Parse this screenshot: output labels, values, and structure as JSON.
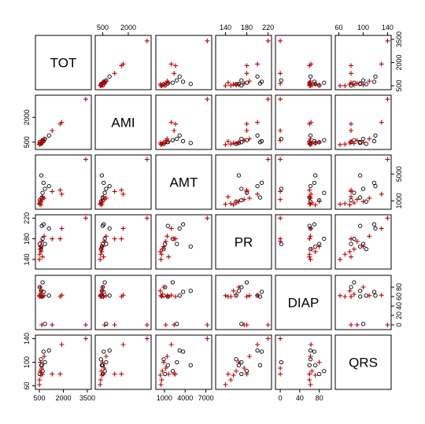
{
  "chart_data": {
    "type": "scatter",
    "title": "",
    "variables": [
      "TOT",
      "AMI",
      "AMT",
      "PR",
      "DIAP",
      "QRS"
    ],
    "ranges": {
      "TOT": [
        400,
        3600
      ],
      "AMI": [
        200,
        3200
      ],
      "AMT": [
        100,
        7500
      ],
      "PR": [
        126,
        222
      ],
      "DIAP": [
        -5,
        100
      ],
      "QRS": [
        58,
        142
      ]
    },
    "ticks": {
      "top": {
        "AMI": [
          "500",
          "2000"
        ],
        "PR": [
          "140",
          "180",
          "220"
        ],
        "QRS": [
          "60",
          "100",
          "140"
        ]
      },
      "bottom": {
        "TOT": [
          "500",
          "2000",
          "3500"
        ],
        "AMT": [
          "1000",
          "4000",
          "7000"
        ],
        "DIAP": [
          "0",
          "40",
          "80"
        ]
      },
      "left": {
        "AMI": [
          "500",
          "2000"
        ],
        "PR": [
          "140",
          "180",
          "220"
        ],
        "QRS": [
          "60",
          "100",
          "140"
        ]
      },
      "right": {
        "TOT": [
          "500",
          "2000",
          "3500"
        ],
        "AMT": [
          "1000",
          "5000"
        ],
        "DIAP": [
          "0",
          "20",
          "40",
          "60",
          "80"
        ]
      }
    },
    "series": [
      {
        "name": "",
        "marker": "circle",
        "color": "#000000",
        "points": [
          {
            "TOT": 520,
            "AMI": 500,
            "AMT": 1100,
            "PR": 170,
            "DIAP": 80,
            "QRS": 80
          },
          {
            "TOT": 600,
            "AMI": 400,
            "AMT": 900,
            "PR": 160,
            "DIAP": 62,
            "QRS": 105
          },
          {
            "TOT": 650,
            "AMI": 500,
            "AMT": 1500,
            "PR": 205,
            "DIAP": 60,
            "QRS": 95
          },
          {
            "TOT": 700,
            "AMI": 620,
            "AMT": 2200,
            "PR": 180,
            "DIAP": 90,
            "QRS": 85
          },
          {
            "TOT": 760,
            "AMI": 560,
            "AMT": 3700,
            "PR": 208,
            "DIAP": 70,
            "QRS": 118
          },
          {
            "TOT": 850,
            "AMI": 700,
            "AMT": 2800,
            "PR": 170,
            "DIAP": 2,
            "QRS": 100
          },
          {
            "TOT": 1100,
            "AMI": 900,
            "AMT": 3200,
            "PR": 200,
            "DIAP": 62,
            "QRS": 120
          },
          {
            "TOT": 620,
            "AMI": 450,
            "AMT": 4800,
            "PR": 165,
            "DIAP": 72,
            "QRS": 95
          }
        ]
      },
      {
        "name": "",
        "marker": "plus",
        "color": "#c00000",
        "points": [
          {
            "TOT": 500,
            "AMI": 350,
            "AMT": 500,
            "PR": 140,
            "DIAP": 62,
            "QRS": 62
          },
          {
            "TOT": 510,
            "AMI": 380,
            "AMT": 600,
            "PR": 150,
            "DIAP": 60,
            "QRS": 70
          },
          {
            "TOT": 540,
            "AMI": 420,
            "AMT": 700,
            "PR": 160,
            "DIAP": 65,
            "QRS": 85
          },
          {
            "TOT": 560,
            "AMI": 500,
            "AMT": 900,
            "PR": 165,
            "DIAP": 80,
            "QRS": 100
          },
          {
            "TOT": 600,
            "AMI": 450,
            "AMT": 400,
            "PR": 155,
            "DIAP": 72,
            "QRS": 78
          },
          {
            "TOT": 650,
            "AMI": 600,
            "AMT": 1200,
            "PR": 175,
            "DIAP": 0,
            "QRS": 90
          },
          {
            "TOT": 700,
            "AMI": 550,
            "AMT": 1600,
            "PR": 145,
            "DIAP": 60,
            "QRS": 80
          },
          {
            "TOT": 800,
            "AMI": 700,
            "AMT": 1400,
            "PR": 185,
            "DIAP": 62,
            "QRS": 110
          },
          {
            "TOT": 1300,
            "AMI": 1200,
            "AMT": 2400,
            "PR": 180,
            "DIAP": 0,
            "QRS": 80
          },
          {
            "TOT": 1800,
            "AMI": 1600,
            "AMT": 2600,
            "PR": 180,
            "DIAP": 60,
            "QRS": 80
          },
          {
            "TOT": 1900,
            "AMI": 1700,
            "AMT": 2000,
            "PR": 200,
            "DIAP": 63,
            "QRS": 130
          },
          {
            "TOT": 3400,
            "AMI": 3100,
            "AMT": 7200,
            "PR": 220,
            "DIAP": 0,
            "QRS": 140
          }
        ]
      }
    ]
  }
}
